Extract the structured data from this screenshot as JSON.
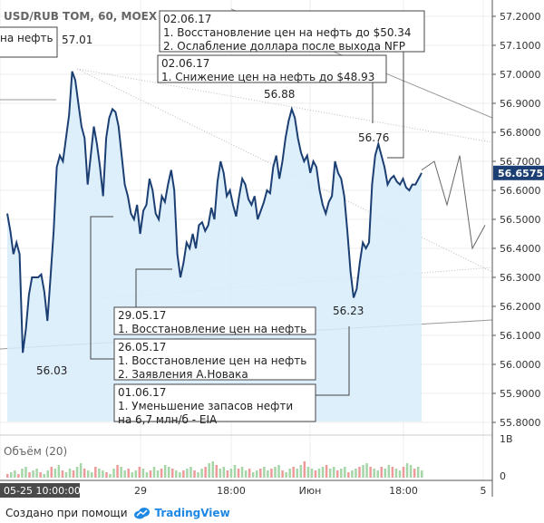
{
  "chart_data": {
    "type": "line",
    "title": "USD/RUB TOM, 60, MOEX",
    "last_price_label": "56.6575",
    "y_ticks": [
      "57.2000",
      "57.1000",
      "57.0000",
      "56.9000",
      "56.8000",
      "56.7000",
      "56.6000",
      "56.5000",
      "56.4000",
      "56.3000",
      "56.2000",
      "56.1000",
      "56.0000",
      "55.9000",
      "55.8000"
    ],
    "y_tick_values": [
      57.2,
      57.1,
      57.0,
      56.9,
      56.8,
      56.7,
      56.6,
      56.5,
      56.4,
      56.3,
      56.2,
      56.1,
      56.0,
      55.9,
      55.8
    ],
    "ylim": [
      55.75,
      57.25
    ],
    "x_ticks": [
      "29",
      "18:00",
      "Июн",
      "18:00",
      "5"
    ],
    "x_start_label": "05-25 10:00:00",
    "series": [
      {
        "values": [
          56.52,
          56.46,
          56.38,
          56.42,
          56.38,
          56.04,
          56.12,
          56.24,
          56.3,
          56.3,
          56.3,
          56.31,
          56.25,
          56.15,
          56.3,
          56.46,
          56.68,
          56.72,
          56.7,
          56.78,
          56.86,
          57.01,
          56.98,
          56.9,
          56.82,
          56.78,
          56.62,
          56.72,
          56.82,
          56.76,
          56.68,
          56.58,
          56.78,
          56.85,
          56.88,
          56.87,
          56.82,
          56.72,
          56.62,
          56.58,
          56.52,
          56.5,
          56.55,
          56.45,
          56.53,
          56.55,
          56.64,
          56.6,
          56.52,
          56.5,
          56.58,
          56.56,
          56.62,
          56.67,
          56.6,
          56.38,
          56.3,
          56.35,
          56.42,
          56.4,
          56.45,
          56.4,
          56.48,
          56.49,
          56.46,
          56.48,
          56.54,
          56.5,
          56.63,
          56.7,
          56.66,
          56.58,
          56.6,
          56.55,
          56.51,
          56.58,
          56.64,
          56.62,
          56.57,
          56.55,
          56.58,
          56.5,
          56.53,
          56.56,
          56.6,
          56.59,
          56.68,
          56.72,
          56.64,
          56.7,
          56.78,
          56.84,
          56.88,
          56.85,
          56.78,
          56.73,
          56.7,
          56.72,
          56.66,
          56.7,
          56.68,
          56.6,
          56.55,
          56.52,
          56.56,
          56.58,
          56.7,
          56.66,
          56.64,
          56.58,
          56.46,
          56.32,
          56.23,
          56.26,
          56.35,
          56.42,
          56.4,
          56.42,
          56.62,
          56.72,
          56.76,
          56.72,
          56.68,
          56.62,
          56.64,
          56.65,
          56.63,
          56.62,
          56.64,
          56.61,
          56.6,
          56.62,
          56.62,
          56.64,
          56.66
        ]
      }
    ],
    "projection": [
      56.67,
      56.7,
      56.55,
      56.72,
      56.4,
      56.48
    ],
    "price_labels": [
      "57.01",
      "56.88",
      "56.76",
      "56.23",
      "56.03"
    ],
    "annotations": [
      {
        "date": "02.06.17",
        "lines": [
          "1. Восстановление цен на нефть до $50.34",
          "2. Ослабление доллара после выхода NFP"
        ]
      },
      {
        "date": "02.06.17",
        "lines": [
          "1. Снижение цен на нефть до $48.93"
        ]
      },
      {
        "date": "29.05.17",
        "lines": [
          "1. Восстановление цен на нефть"
        ]
      },
      {
        "date": "26.05.17",
        "lines": [
          "1. Восстановление цен на нефть",
          "2. Заявления А.Новака"
        ]
      },
      {
        "date": "01.06.17",
        "lines": [
          "1. Уменьшение запасов нефти",
          "на 6,7 млн/б - EIA"
        ]
      }
    ],
    "partial_label": "на нефть",
    "volume_label": "Объём (20)",
    "volume_ticks": [
      "1B",
      "0"
    ],
    "volume_values": [
      2,
      3,
      4,
      2,
      5,
      6,
      3,
      4,
      5,
      3,
      2,
      4,
      6,
      5,
      7,
      4,
      3,
      5,
      4,
      6,
      8,
      5,
      4,
      3,
      6,
      5,
      4,
      3,
      2,
      5,
      7,
      6,
      4,
      5,
      3,
      4,
      6,
      5,
      3,
      4,
      6,
      4,
      5,
      7,
      6,
      5,
      4,
      3,
      4,
      5,
      6,
      4,
      3,
      5,
      6,
      8,
      9,
      7,
      5,
      6,
      4,
      5,
      7,
      5,
      6,
      4,
      5,
      3,
      4,
      5,
      6,
      4,
      5,
      6,
      7,
      4,
      3,
      5,
      6,
      5,
      7,
      9,
      6,
      5,
      4,
      5,
      6,
      7,
      5,
      6,
      4,
      5,
      6,
      3,
      4,
      5,
      6,
      7,
      8,
      6,
      5,
      4,
      6,
      5,
      7,
      6,
      5,
      4,
      6,
      8,
      7,
      5,
      6,
      4
    ],
    "colors": {
      "line": "#1c3f73",
      "area": "#d8ecfb",
      "grid": "#eeeeee",
      "trend": "#999999",
      "up": "#a5d6a7",
      "down": "#ef9a9a"
    }
  },
  "footer": {
    "created_with": "Создано при помощи",
    "brand": "TradingView"
  }
}
